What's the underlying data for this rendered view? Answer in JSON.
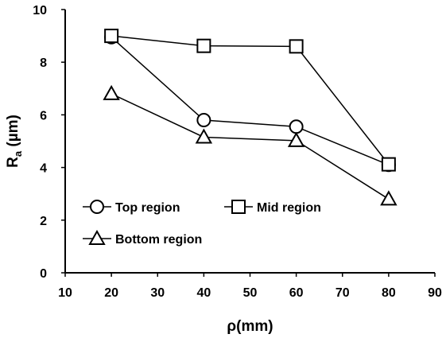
{
  "chart_data": {
    "type": "line",
    "title": "",
    "xlabel_symbol": "ρ",
    "xlabel_unit": "(mm)",
    "ylabel_main": "R",
    "ylabel_sub": "a",
    "ylabel_unit": " (µm)",
    "xlim": [
      10,
      90
    ],
    "ylim": [
      0,
      10
    ],
    "xticks": [
      10,
      20,
      30,
      40,
      50,
      60,
      70,
      80,
      90
    ],
    "yticks": [
      0,
      2,
      4,
      6,
      8,
      10
    ],
    "grid": false,
    "legend_position": "lower-left",
    "x": [
      20,
      40,
      60,
      80
    ],
    "series": [
      {
        "name": "Top region",
        "marker": "circle",
        "values": [
          8.95,
          5.8,
          5.55,
          4.1
        ]
      },
      {
        "name": "Mid region",
        "marker": "square",
        "values": [
          9.0,
          8.62,
          8.6,
          4.12
        ]
      },
      {
        "name": "Bottom region",
        "marker": "triangle",
        "values": [
          6.8,
          5.15,
          5.02,
          2.8
        ]
      }
    ],
    "colors": {
      "line": "#000000",
      "marker_fill": "#ffffff"
    }
  }
}
